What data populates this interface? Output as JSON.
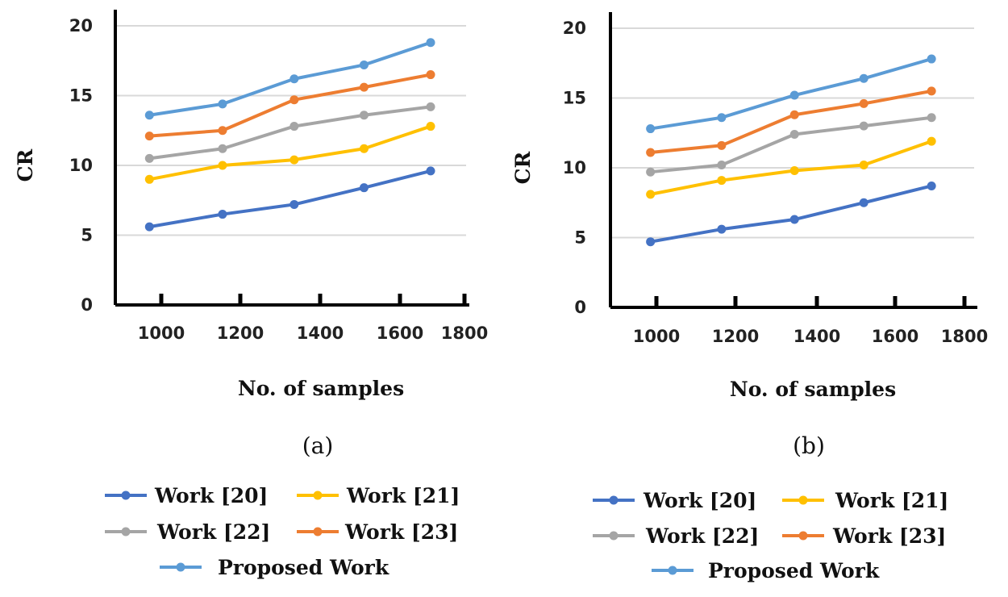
{
  "chart_data": [
    {
      "type": "line",
      "caption": "(a)",
      "xlabel": "No. of samples",
      "ylabel": "CR",
      "x_ticks": [
        1000,
        1200,
        1400,
        1600,
        1800
      ],
      "y_ticks": [
        0,
        5,
        10,
        15,
        20
      ],
      "xlim": [
        900,
        1800
      ],
      "ylim": [
        0,
        20
      ],
      "grid": true,
      "legend_position": "bottom",
      "x": [
        970,
        1155,
        1335,
        1510,
        1695
      ],
      "series": [
        {
          "name": "Work [20]",
          "color": "#4472C4",
          "values": [
            5.6,
            6.5,
            7.2,
            8.4,
            9.6
          ]
        },
        {
          "name": "Work [21]",
          "color": "#FFC000",
          "values": [
            9.0,
            10.0,
            10.4,
            11.2,
            12.8
          ]
        },
        {
          "name": "Work [22]",
          "color": "#A5A5A5",
          "values": [
            10.5,
            11.2,
            12.8,
            13.6,
            14.2
          ]
        },
        {
          "name": "Work [23]",
          "color": "#ED7D31",
          "values": [
            12.1,
            12.5,
            14.7,
            15.6,
            16.5
          ]
        },
        {
          "name": "Proposed Work",
          "color": "#5B9BD5",
          "values": [
            13.6,
            14.4,
            16.2,
            17.2,
            18.8
          ]
        }
      ]
    },
    {
      "type": "line",
      "caption": "(b)",
      "xlabel": "No. of samples",
      "ylabel": "CR",
      "x_ticks": [
        1000,
        1200,
        1400,
        1600,
        1800
      ],
      "y_ticks": [
        0,
        5,
        10,
        15,
        20
      ],
      "xlim": [
        900,
        1800
      ],
      "ylim": [
        0,
        20
      ],
      "grid": true,
      "legend_position": "bottom",
      "x": [
        985,
        1165,
        1345,
        1520,
        1705
      ],
      "series": [
        {
          "name": "Work [20]",
          "color": "#4472C4",
          "values": [
            4.7,
            5.6,
            6.3,
            7.5,
            8.7
          ]
        },
        {
          "name": "Work [21]",
          "color": "#FFC000",
          "values": [
            8.1,
            9.1,
            9.8,
            10.2,
            11.9
          ]
        },
        {
          "name": "Work [22]",
          "color": "#A5A5A5",
          "values": [
            9.7,
            10.2,
            12.4,
            13.0,
            13.6
          ]
        },
        {
          "name": "Work [23]",
          "color": "#ED7D31",
          "values": [
            11.1,
            11.6,
            13.8,
            14.6,
            15.5
          ]
        },
        {
          "name": "Proposed Work",
          "color": "#5B9BD5",
          "values": [
            12.8,
            13.6,
            15.2,
            16.4,
            17.8
          ]
        }
      ]
    }
  ]
}
